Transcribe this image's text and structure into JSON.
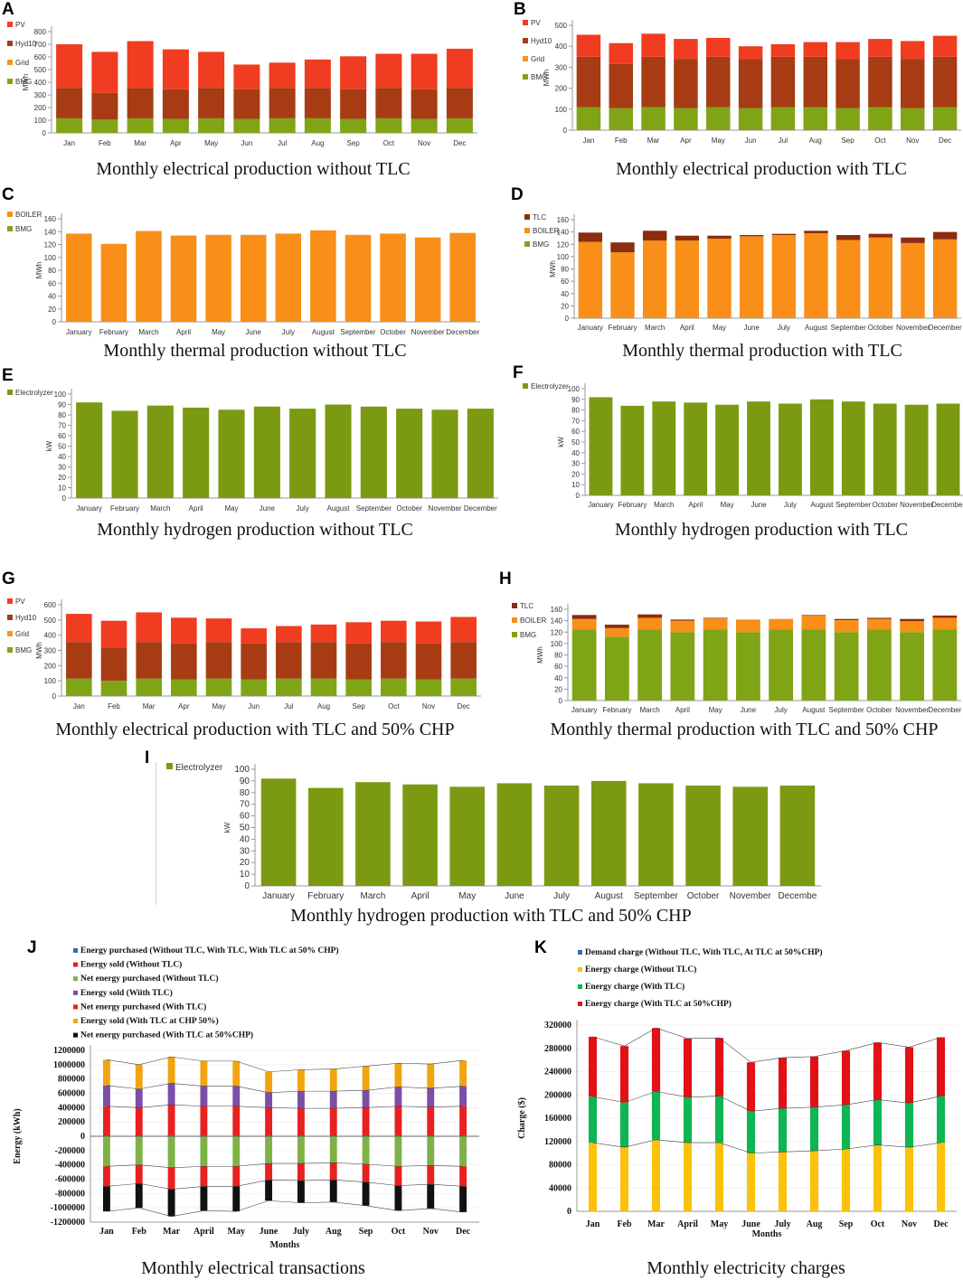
{
  "colors": {
    "PV": "#f03c20",
    "Hyd10": "#a73c14",
    "Grid": "#f7941d",
    "BMG": "#7fa517",
    "BOILER": "#f98f18",
    "TLC": "#8b2d0e",
    "Electrolyzer": "#7b9a12",
    "blue": "#2e6fb8",
    "red": "#e82020",
    "green": "#7db246",
    "purple": "#7b4ea8",
    "orange": "#f2a40f",
    "black": "#111111",
    "yellow": "#fcc10a",
    "dgreen": "#0eb552",
    "ered": "#e31015"
  },
  "chart_data": [
    {
      "id": "A",
      "letter": "A",
      "caption": "Monthly electrical production without TLC",
      "type": "bar",
      "stacked": true,
      "ylabel": "MWh",
      "ylim": [
        0,
        800
      ],
      "yticks": [
        "0",
        "100",
        "200",
        "300",
        "400",
        "500",
        "600",
        "700",
        "800"
      ],
      "categories": [
        "Jan",
        "Feb",
        "Mar",
        "Apr",
        "May",
        "Jun",
        "Jul",
        "Aug",
        "Sep",
        "Oct",
        "Nov",
        "Dec"
      ],
      "legend": [
        "PV",
        "Hyd10",
        "Grid",
        "BMG"
      ],
      "series": [
        {
          "name": "BMG",
          "color": "BMG",
          "values": [
            115,
            105,
            115,
            110,
            115,
            110,
            115,
            115,
            110,
            115,
            110,
            115
          ]
        },
        {
          "name": "Hyd10",
          "color": "Hyd10",
          "values": [
            240,
            210,
            240,
            235,
            240,
            235,
            240,
            240,
            235,
            240,
            235,
            240
          ]
        },
        {
          "name": "PV",
          "color": "PV",
          "values": [
            345,
            325,
            370,
            315,
            285,
            195,
            200,
            225,
            260,
            270,
            280,
            310
          ]
        }
      ]
    },
    {
      "id": "B",
      "letter": "B",
      "caption": "Monthly electrical production with TLC",
      "type": "bar",
      "stacked": true,
      "ylabel": "MWh",
      "ylim": [
        0,
        500
      ],
      "yticks": [
        "0",
        "100",
        "200",
        "300",
        "400",
        "500"
      ],
      "categories": [
        "Jan",
        "Feb",
        "Mar",
        "Apr",
        "May",
        "Jun",
        "Jul",
        "Aug",
        "Sep",
        "Oct",
        "Nov",
        "Dec"
      ],
      "legend": [
        "PV",
        "Hyd10",
        "Grid",
        "BMG"
      ],
      "series": [
        {
          "name": "BMG",
          "color": "BMG",
          "values": [
            110,
            105,
            110,
            105,
            110,
            105,
            110,
            110,
            105,
            110,
            105,
            110
          ]
        },
        {
          "name": "Hyd10",
          "color": "Hyd10",
          "values": [
            240,
            210,
            240,
            235,
            240,
            235,
            240,
            240,
            235,
            240,
            235,
            240
          ]
        },
        {
          "name": "PV",
          "color": "PV",
          "values": [
            105,
            100,
            110,
            95,
            90,
            60,
            60,
            70,
            80,
            85,
            85,
            100
          ]
        }
      ]
    },
    {
      "id": "C",
      "letter": "C",
      "caption": "Monthly thermal production without TLC",
      "type": "bar",
      "stacked": true,
      "ylabel": "MWh",
      "ylim": [
        0,
        160
      ],
      "yticks": [
        "0",
        "20",
        "40",
        "60",
        "80",
        "100",
        "120",
        "140",
        "160"
      ],
      "categories": [
        "January",
        "February",
        "March",
        "April",
        "May",
        "June",
        "July",
        "August",
        "September",
        "October",
        "November",
        "December"
      ],
      "legend": [
        "BOILER",
        "BMG"
      ],
      "series": [
        {
          "name": "BOILER",
          "color": "BOILER",
          "values": [
            137,
            121,
            141,
            134,
            135,
            135,
            137,
            142,
            135,
            137,
            131,
            138
          ]
        }
      ]
    },
    {
      "id": "D",
      "letter": "D",
      "caption": "Monthly thermal production with TLC",
      "type": "bar",
      "stacked": true,
      "ylabel": "MWh",
      "ylim": [
        0,
        160
      ],
      "yticks": [
        "0",
        "20",
        "40",
        "60",
        "80",
        "100",
        "120",
        "140",
        "160"
      ],
      "categories": [
        "January",
        "February",
        "March",
        "April",
        "May",
        "June",
        "July",
        "August",
        "September",
        "October",
        "November",
        "December"
      ],
      "legend": [
        "TLC",
        "BOILER",
        "BMG"
      ],
      "series": [
        {
          "name": "BOILER",
          "color": "BOILER",
          "values": [
            124,
            107,
            126,
            126,
            129,
            133,
            135,
            138,
            127,
            131,
            122,
            128
          ]
        },
        {
          "name": "TLC",
          "color": "TLC",
          "values": [
            15,
            16,
            16,
            8,
            5,
            2,
            2,
            4,
            8,
            6,
            9,
            12
          ]
        }
      ]
    },
    {
      "id": "E",
      "letter": "E",
      "caption": "Monthly hydrogen production without TLC",
      "type": "bar",
      "stacked": true,
      "ylabel": "kW",
      "ylim": [
        0,
        100
      ],
      "yticks": [
        "0",
        "10",
        "20",
        "30",
        "40",
        "50",
        "60",
        "70",
        "80",
        "90",
        "100"
      ],
      "categories": [
        "January",
        "February",
        "March",
        "April",
        "May",
        "June",
        "July",
        "August",
        "September",
        "October",
        "November",
        "December"
      ],
      "legend": [
        "Electrolyzer"
      ],
      "series": [
        {
          "name": "Electrolyzer",
          "color": "Electrolyzer",
          "values": [
            92,
            84,
            89,
            87,
            85,
            88,
            86,
            90,
            88,
            86,
            85,
            86
          ]
        }
      ]
    },
    {
      "id": "F",
      "letter": "F",
      "caption": "Monthly hydrogen production with TLC",
      "type": "bar",
      "stacked": true,
      "ylabel": "kW",
      "ylim": [
        0,
        100
      ],
      "yticks": [
        "0",
        "10",
        "20",
        "30",
        "40",
        "50",
        "60",
        "70",
        "80",
        "90",
        "100"
      ],
      "categories": [
        "January",
        "February",
        "March",
        "April",
        "May",
        "June",
        "July",
        "August",
        "September",
        "October",
        "November",
        "December"
      ],
      "legend": [
        "Electrolyzer"
      ],
      "series": [
        {
          "name": "Electrolyzer",
          "color": "Electrolyzer",
          "values": [
            92,
            84,
            88,
            87,
            85,
            88,
            86,
            90,
            88,
            86,
            85,
            86
          ]
        }
      ]
    },
    {
      "id": "G",
      "letter": "G",
      "caption": "Monthly electrical production with TLC and 50% CHP",
      "type": "bar",
      "stacked": true,
      "ylabel": "MWh",
      "ylim": [
        0,
        600
      ],
      "yticks": [
        "0",
        "100",
        "200",
        "300",
        "400",
        "500",
        "600"
      ],
      "categories": [
        "Jan",
        "Feb",
        "Mar",
        "Apr",
        "May",
        "Jun",
        "Jul",
        "Aug",
        "Sep",
        "Oct",
        "Nov",
        "Dec"
      ],
      "legend": [
        "PV",
        "Hyd10",
        "Grid",
        "BMG"
      ],
      "series": [
        {
          "name": "BMG",
          "color": "BMG",
          "values": [
            115,
            100,
            115,
            110,
            115,
            110,
            115,
            115,
            110,
            115,
            110,
            115
          ]
        },
        {
          "name": "Hyd10",
          "color": "Hyd10",
          "values": [
            240,
            220,
            240,
            235,
            240,
            235,
            240,
            240,
            235,
            240,
            235,
            240
          ]
        },
        {
          "name": "PV",
          "color": "PV",
          "values": [
            185,
            175,
            195,
            170,
            155,
            100,
            105,
            115,
            140,
            140,
            145,
            165
          ]
        }
      ]
    },
    {
      "id": "H",
      "letter": "H",
      "caption": "Monthly thermal production with TLC and 50% CHP",
      "type": "bar",
      "stacked": true,
      "ylabel": "MWh",
      "ylim": [
        0,
        160
      ],
      "yticks": [
        "0",
        "20",
        "40",
        "60",
        "80",
        "100",
        "120",
        "140",
        "160"
      ],
      "categories": [
        "January",
        "February",
        "March",
        "April",
        "May",
        "June",
        "July",
        "August",
        "September",
        "October",
        "November",
        "December"
      ],
      "legend": [
        "TLC",
        "BOILER",
        "BMG"
      ],
      "series": [
        {
          "name": "BMG",
          "color": "BMG",
          "values": [
            125,
            112,
            125,
            120,
            125,
            120,
            125,
            125,
            120,
            125,
            120,
            125
          ]
        },
        {
          "name": "BOILER",
          "color": "BOILER",
          "values": [
            18,
            15,
            20,
            20,
            19,
            22,
            18,
            24,
            21,
            18,
            19,
            20
          ]
        },
        {
          "name": "TLC",
          "color": "TLC",
          "values": [
            7,
            6,
            6,
            2,
            1,
            0,
            0,
            1,
            2,
            2,
            4,
            4
          ]
        }
      ]
    },
    {
      "id": "I",
      "letter": "I",
      "caption": "Monthly hydrogen production with TLC and 50% CHP",
      "type": "bar",
      "stacked": true,
      "ylabel": "kW",
      "ylim": [
        0,
        100
      ],
      "yticks": [
        "0",
        "10",
        "20",
        "30",
        "40",
        "50",
        "60",
        "70",
        "80",
        "90",
        "100"
      ],
      "categories": [
        "January",
        "February",
        "March",
        "April",
        "May",
        "June",
        "July",
        "August",
        "September",
        "October",
        "November",
        "Decembe"
      ],
      "legend": [
        "Electrolyzer"
      ],
      "series": [
        {
          "name": "Electrolyzer",
          "color": "Electrolyzer",
          "values": [
            92,
            84,
            89,
            87,
            85,
            88,
            86,
            90,
            88,
            86,
            85,
            86
          ]
        }
      ]
    },
    {
      "id": "J",
      "letter": "J",
      "caption": "Monthly electrical transactions",
      "type": "bar",
      "stacked": true,
      "diverging": true,
      "ylabel": "Energy (kWh)",
      "xlabel": "Months",
      "ylim": [
        -1200000,
        1200000
      ],
      "yticks": [
        "-1200000",
        "-1000000",
        "-800000",
        "-600000",
        "-400000",
        "-200000",
        "0",
        "200000",
        "400000",
        "600000",
        "800000",
        "1000000",
        "1200000"
      ],
      "categories": [
        "Jan",
        "Feb",
        "Mar",
        "April",
        "May",
        "June",
        "July",
        "Aug",
        "Sep",
        "Oct",
        "Nov",
        "Dec"
      ],
      "legend": [
        {
          "label": "Energy purchased (Without TLC, With TLC, With TLC at 50% CHP)",
          "color": "blue"
        },
        {
          "label": "Energy sold (Without TLC)",
          "color": "red"
        },
        {
          "label": "Net energy purchased (Without TLC)",
          "color": "green"
        },
        {
          "label": "Energy sold (Wiith TLC)",
          "color": "purple"
        },
        {
          "label": "Net energy purchased (With TLC)",
          "color": "red"
        },
        {
          "label": "Energy sold (With TLC at CHP 50%)",
          "color": "orange"
        },
        {
          "label": "Net energy purchased (With TLC at 50%CHP)",
          "color": "black"
        }
      ],
      "series": [
        {
          "name": "Energy sold (Without TLC)",
          "color": "red",
          "values": [
            420000,
            400000,
            440000,
            420000,
            420000,
            400000,
            390000,
            390000,
            400000,
            420000,
            410000,
            420000
          ]
        },
        {
          "name": "Energy sold (Wiith TLC)",
          "color": "purple",
          "values": [
            290000,
            260000,
            300000,
            280000,
            280000,
            210000,
            240000,
            240000,
            240000,
            270000,
            260000,
            280000
          ]
        },
        {
          "name": "Energy sold (With TLC at CHP 50%)",
          "color": "orange",
          "values": [
            360000,
            340000,
            370000,
            350000,
            350000,
            290000,
            300000,
            310000,
            340000,
            330000,
            340000,
            360000
          ]
        },
        {
          "name": "Net energy purchased (Without TLC)",
          "color": "green",
          "values": [
            -420000,
            -400000,
            -440000,
            -420000,
            -420000,
            -380000,
            -380000,
            -370000,
            -390000,
            -420000,
            -410000,
            -420000
          ]
        },
        {
          "name": "Net energy purchased (With TLC)",
          "color": "red",
          "values": [
            -280000,
            -260000,
            -300000,
            -280000,
            -280000,
            -230000,
            -240000,
            -240000,
            -250000,
            -270000,
            -260000,
            -280000
          ]
        },
        {
          "name": "Net energy purchased (With TLC at 50%CHP)",
          "color": "black",
          "values": [
            -350000,
            -340000,
            -380000,
            -340000,
            -350000,
            -290000,
            -310000,
            -310000,
            -330000,
            -350000,
            -340000,
            -360000
          ]
        }
      ]
    },
    {
      "id": "K",
      "letter": "K",
      "caption": "Monthly electricity charges",
      "type": "bar",
      "stacked": true,
      "ylabel": "Charge ($)",
      "xlabel": "Months",
      "ylim": [
        0,
        320000
      ],
      "yticks": [
        "0",
        "40000",
        "80000",
        "120000",
        "160000",
        "200000",
        "240000",
        "280000",
        "320000"
      ],
      "categories": [
        "Jan",
        "Feb",
        "Mar",
        "April",
        "May",
        "June",
        "July",
        "Aug",
        "Sep",
        "Oct",
        "Nov",
        "Dec"
      ],
      "legend": [
        {
          "label": "Demand charge (Without TLC, With TLC, At TLC at 50%CHP)",
          "color": "blue"
        },
        {
          "label": "Energy charge (Without TLC)",
          "color": "yellow"
        },
        {
          "label": "Energy charge (With TLC)",
          "color": "dgreen"
        },
        {
          "label": "Energy charge (With TLC at 50%CHP)",
          "color": "ered"
        }
      ],
      "series": [
        {
          "name": "Energy charge (Without TLC)",
          "color": "yellow",
          "values": [
            118000,
            110000,
            123000,
            118000,
            118000,
            100000,
            102000,
            104000,
            107000,
            114000,
            110000,
            118000
          ]
        },
        {
          "name": "Energy charge (With TLC)",
          "color": "dgreen",
          "values": [
            79000,
            77000,
            83000,
            78000,
            80000,
            72000,
            75000,
            75000,
            76000,
            78000,
            76000,
            80000
          ]
        },
        {
          "name": "Energy charge (With TLC at 50%CHP)",
          "color": "ered",
          "values": [
            103000,
            97000,
            109000,
            101000,
            100000,
            84000,
            87000,
            87000,
            93000,
            98000,
            96000,
            101000
          ]
        }
      ]
    }
  ]
}
